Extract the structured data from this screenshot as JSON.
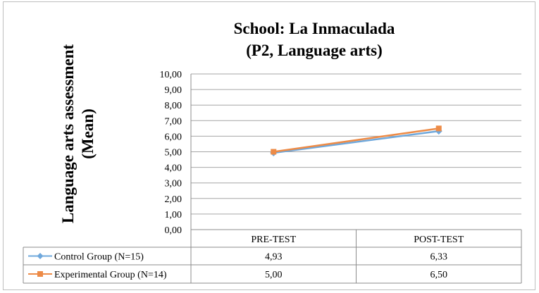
{
  "chart_data": {
    "type": "line",
    "title_line1": "School: La Inmaculada",
    "title_line2": "(P2, Language arts)",
    "ylabel_line1": "Language arts assessment",
    "ylabel_line2": "(Mean)",
    "xlabel": "",
    "categories": [
      "PRE-TEST",
      "POST-TEST"
    ],
    "category_labels": [
      "PRE-TEST",
      "POST-TEST"
    ],
    "y_ticks": [
      "0,00",
      "1,00",
      "2,00",
      "3,00",
      "4,00",
      "5,00",
      "6,00",
      "7,00",
      "8,00",
      "9,00",
      "10,00"
    ],
    "ylim": [
      0,
      10
    ],
    "grid": true,
    "legend": "data-table",
    "series": [
      {
        "name": "Control Group (N=15)",
        "values": [
          4.93,
          6.33
        ],
        "labels": [
          "4,93",
          "6,33"
        ],
        "color": "#6fa8dc",
        "marker": "diamond"
      },
      {
        "name": "Experimental Group (N=14)",
        "values": [
          5.0,
          6.5
        ],
        "labels": [
          "5,00",
          "6,50"
        ],
        "color": "#ed8b47",
        "marker": "square"
      }
    ]
  }
}
